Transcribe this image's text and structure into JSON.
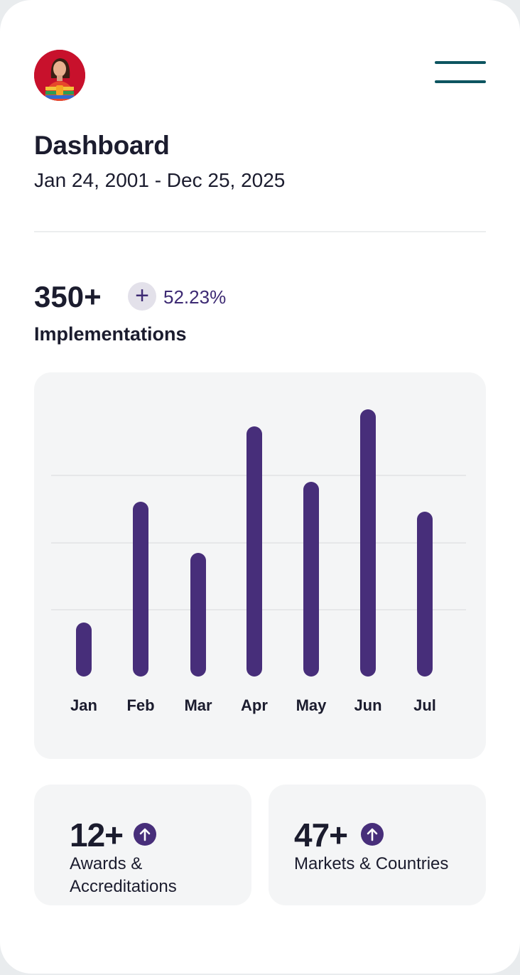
{
  "header": {
    "avatar_alt": "User avatar",
    "menu_icon": "hamburger-menu-icon"
  },
  "page": {
    "title": "Dashboard",
    "date_range": "Jan 24, 2001 - Dec 25, 2025"
  },
  "kpi": {
    "value": "350+",
    "change_icon": "plus-icon",
    "change_symbol": "+",
    "change_pct": "52.23%",
    "label": "Implementations"
  },
  "chart_data": {
    "type": "bar",
    "title": "Implementations",
    "categories": [
      "Jan",
      "Feb",
      "Mar",
      "Apr",
      "May",
      "Jun",
      "Jul"
    ],
    "values": [
      76,
      246,
      174,
      352,
      274,
      376,
      232
    ],
    "units": "relative (px above baseline, no numeric axis shown)",
    "xlabel": "",
    "ylabel": "",
    "grid": true,
    "gridlines": 3,
    "bar_color": "#472e7a",
    "legend": null
  },
  "stats": [
    {
      "value": "12+",
      "icon": "arrow-up-circle-icon",
      "label_line1": "Awards &",
      "label_line2": "Accreditations"
    },
    {
      "value": "47+",
      "icon": "arrow-up-circle-icon",
      "label_line1": "Markets & Countries",
      "label_line2": ""
    }
  ],
  "colors": {
    "accent": "#472e7a",
    "menu": "#0d5560",
    "text": "#1b1c2e",
    "card_bg": "#f4f5f6"
  }
}
